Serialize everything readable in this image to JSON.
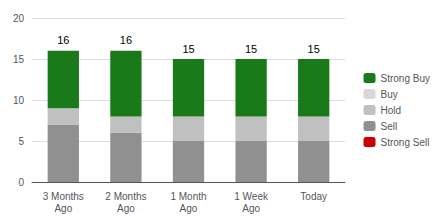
{
  "chart_data": {
    "type": "bar",
    "stacked": true,
    "categories": [
      "3 Months\nAgo",
      "2 Months\nAgo",
      "1 Month\nAgo",
      "1 Week\nAgo",
      "Today"
    ],
    "series": [
      {
        "name": "Strong Sell",
        "color": "#cc0000",
        "values": [
          0,
          0,
          0,
          0,
          0
        ]
      },
      {
        "name": "Sell",
        "color": "#909090",
        "values": [
          7,
          6,
          5,
          5,
          5
        ]
      },
      {
        "name": "Hold",
        "color": "#c0c0c0",
        "values": [
          2,
          2,
          3,
          3,
          3
        ]
      },
      {
        "name": "Buy",
        "color": "#d8d8d8",
        "values": [
          0,
          0,
          0,
          0,
          0
        ]
      },
      {
        "name": "Strong Buy",
        "color": "#1a7a1a",
        "values": [
          7,
          8,
          7,
          7,
          7
        ]
      }
    ],
    "totals": [
      16,
      16,
      15,
      15,
      15
    ],
    "ylim": [
      0,
      20
    ],
    "yticks": [
      0,
      5,
      10,
      15,
      20
    ],
    "grid": true,
    "legend": "right"
  }
}
